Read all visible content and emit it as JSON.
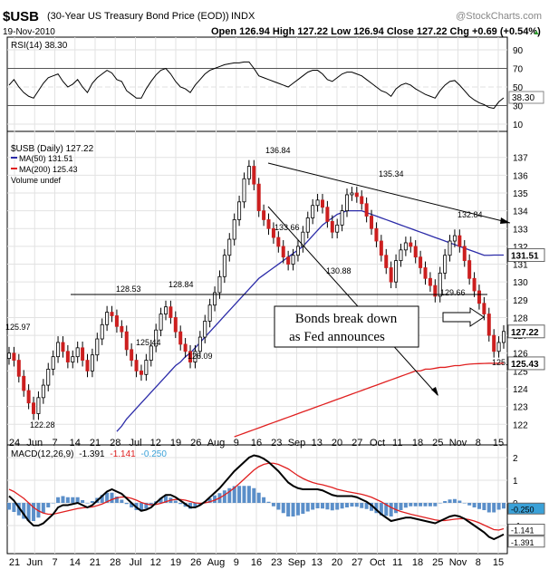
{
  "header": {
    "symbol": "$USB",
    "description": "(30-Year US Treasury Bond Price (EOD))",
    "exchange": "INDX",
    "watermark": "@StockCharts.com",
    "date": "19-Nov-2010",
    "ohlc_text": "Open 126.94  High 127.22  Low 126.94  Close 127.22  Chg +0.69 (+0.54%)",
    "chg_arrow": "▲"
  },
  "rsi": {
    "label": "RSI(14) 38.30",
    "value_badge": "38.30",
    "levels": [
      "90",
      "70",
      "50",
      "30",
      "10"
    ]
  },
  "price_legend": {
    "title": "$USB (Daily) 127.22",
    "ma50": "MA(50) 131.51",
    "ma200": "MA(200) 125.43",
    "volume": "Volume undef"
  },
  "macd": {
    "label_prefix": "MACD(12,26,9)",
    "v1": "-1.391",
    "v2": "-1.141",
    "v3": "-0.250",
    "axis": [
      "2",
      "1",
      "0",
      "-1"
    ],
    "badges": [
      "-0.250",
      "-1.141",
      "-1.391"
    ]
  },
  "annotation": {
    "line1": "Bonds break down",
    "line2": "as Fed announces"
  },
  "colors": {
    "ma50": "#2b2ba8",
    "ma200": "#e02020",
    "down_candle": "#cc1f1f",
    "up_candle": "#ffffff",
    "hist": "#5b8fc9",
    "badge_blue": "#3aa1d8"
  },
  "chart_data": {
    "type": "candlestick",
    "y_axis": [
      "122",
      "123",
      "124",
      "125",
      "126",
      "127",
      "128",
      "129",
      "130",
      "131",
      "132",
      "133",
      "134",
      "135",
      "136",
      "137"
    ],
    "ylim": [
      121.2,
      137.8
    ],
    "last_price_badge": "127.22",
    "ma50_badge": "131.51",
    "ma200_badge": "125.43",
    "x_labels": [
      "24",
      "Jun",
      "7",
      "14",
      "21",
      "28",
      "Jul",
      "12",
      "19",
      "26",
      "Aug",
      "9",
      "16",
      "23",
      "Sep",
      "13",
      "20",
      "27",
      "Oct",
      "11",
      "18",
      "25",
      "Nov",
      "8",
      "15"
    ],
    "x_labels_bottom": [
      "21",
      "Jun",
      "7",
      "14",
      "21",
      "28",
      "Jul",
      "12",
      "19",
      "26",
      "Aug",
      "9",
      "16",
      "23",
      "Sep",
      "13",
      "20",
      "27",
      "Oct",
      "11",
      "18",
      "25",
      "Nov",
      "8",
      "15"
    ],
    "price_labels": [
      "125.97",
      "122.28",
      "128.53",
      "125.44",
      "128.84",
      "126.09",
      "136.84",
      "133.66",
      "130.88",
      "135.34",
      "132.84",
      "129.66",
      "125.72"
    ],
    "closes": [
      126.0,
      125.6,
      124.7,
      123.9,
      123.2,
      122.6,
      123.5,
      124.2,
      125.1,
      125.8,
      126.6,
      126.1,
      125.5,
      125.8,
      126.3,
      125.6,
      125.0,
      125.9,
      126.8,
      127.6,
      128.3,
      128.1,
      127.5,
      127.2,
      126.2,
      125.6,
      125.0,
      124.8,
      125.6,
      126.4,
      127.3,
      128.2,
      128.6,
      128.0,
      127.2,
      126.5,
      126.1,
      125.5,
      126.1,
      126.9,
      127.8,
      128.7,
      129.4,
      130.3,
      131.5,
      132.4,
      133.5,
      134.5,
      135.8,
      136.5,
      135.5,
      134.0,
      133.5,
      133.0,
      132.5,
      132.0,
      131.4,
      131.0,
      131.5,
      132.0,
      132.8,
      133.6,
      134.3,
      134.6,
      134.2,
      133.4,
      132.8,
      133.2,
      134.0,
      134.9,
      135.0,
      134.8,
      134.4,
      133.7,
      133.0,
      132.3,
      131.5,
      130.8,
      130.0,
      131.2,
      131.8,
      132.2,
      132.0,
      131.4,
      130.8,
      130.2,
      129.8,
      129.2,
      130.5,
      131.5,
      132.3,
      132.6,
      132.0,
      131.2,
      130.2,
      129.5,
      128.8,
      128.2,
      127.0,
      126.1,
      126.6,
      127.22
    ],
    "ma50": [
      null,
      null,
      null,
      null,
      null,
      null,
      null,
      null,
      null,
      null,
      null,
      null,
      null,
      null,
      null,
      null,
      null,
      null,
      null,
      null,
      null,
      null,
      121.6,
      121.9,
      122.3,
      122.6,
      122.9,
      123.2,
      123.5,
      123.8,
      124.1,
      124.4,
      124.7,
      125.0,
      125.3,
      125.5,
      125.8,
      126.0,
      126.3,
      126.6,
      126.9,
      127.2,
      127.5,
      127.8,
      128.1,
      128.4,
      128.7,
      129.0,
      129.3,
      129.6,
      129.9,
      130.2,
      130.4,
      130.6,
      130.8,
      131.0,
      131.2,
      131.4,
      131.6,
      131.8,
      132.0,
      132.3,
      132.6,
      132.9,
      133.2,
      133.4,
      133.6,
      133.8,
      133.9,
      134.0,
      134.0,
      134.0,
      134.0,
      133.9,
      133.8,
      133.7,
      133.6,
      133.5,
      133.4,
      133.3,
      133.2,
      133.1,
      133.0,
      132.9,
      132.8,
      132.7,
      132.6,
      132.5,
      132.4,
      132.3,
      132.2,
      132.1,
      132.0,
      131.9,
      131.8,
      131.7,
      131.6,
      131.5,
      131.5,
      131.51,
      131.51,
      131.51
    ],
    "ma200": [
      null,
      null,
      null,
      null,
      null,
      null,
      null,
      null,
      null,
      null,
      null,
      null,
      null,
      null,
      null,
      null,
      null,
      null,
      null,
      null,
      null,
      null,
      null,
      null,
      null,
      null,
      null,
      null,
      null,
      null,
      null,
      null,
      null,
      null,
      null,
      null,
      null,
      null,
      null,
      null,
      null,
      null,
      null,
      null,
      null,
      null,
      121.3,
      121.4,
      121.5,
      121.6,
      121.7,
      121.8,
      121.9,
      122.0,
      122.1,
      122.2,
      122.3,
      122.4,
      122.5,
      122.6,
      122.7,
      122.8,
      122.9,
      123.0,
      123.1,
      123.2,
      123.3,
      123.4,
      123.5,
      123.6,
      123.7,
      123.8,
      123.9,
      124.0,
      124.1,
      124.2,
      124.3,
      124.4,
      124.5,
      124.6,
      124.7,
      124.8,
      124.9,
      125.0,
      125.0,
      125.1,
      125.1,
      125.15,
      125.2,
      125.2,
      125.25,
      125.3,
      125.3,
      125.35,
      125.38,
      125.4,
      125.41,
      125.42,
      125.43,
      125.43,
      125.43,
      125.43
    ],
    "rsi": [
      52,
      58,
      50,
      44,
      40,
      38,
      46,
      54,
      60,
      62,
      64,
      56,
      50,
      53,
      58,
      50,
      44,
      54,
      60,
      64,
      68,
      65,
      58,
      56,
      46,
      42,
      38,
      38,
      48,
      56,
      63,
      68,
      70,
      64,
      56,
      50,
      48,
      44,
      52,
      58,
      64,
      68,
      70,
      72,
      74,
      75,
      76,
      76,
      77,
      77,
      70,
      62,
      60,
      58,
      56,
      54,
      52,
      50,
      54,
      58,
      62,
      66,
      68,
      68,
      64,
      58,
      56,
      60,
      64,
      66,
      66,
      64,
      62,
      58,
      54,
      50,
      46,
      44,
      40,
      48,
      52,
      54,
      52,
      48,
      45,
      42,
      40,
      38,
      46,
      52,
      56,
      57,
      52,
      46,
      40,
      36,
      33,
      31,
      28,
      27,
      34,
      38.3
    ],
    "macd": [
      0.3,
      0.1,
      -0.2,
      -0.5,
      -0.8,
      -1.0,
      -1.0,
      -0.9,
      -0.7,
      -0.5,
      -0.2,
      -0.1,
      -0.1,
      -0.05,
      0.0,
      -0.1,
      -0.2,
      -0.1,
      0.1,
      0.3,
      0.5,
      0.6,
      0.5,
      0.4,
      0.2,
      0.0,
      -0.2,
      -0.35,
      -0.3,
      -0.2,
      0.0,
      0.2,
      0.35,
      0.35,
      0.25,
      0.1,
      -0.05,
      -0.2,
      -0.2,
      -0.1,
      0.05,
      0.25,
      0.45,
      0.65,
      0.9,
      1.15,
      1.4,
      1.6,
      1.8,
      2.0,
      2.1,
      2.05,
      1.95,
      1.8,
      1.6,
      1.4,
      1.15,
      0.9,
      0.75,
      0.65,
      0.6,
      0.6,
      0.6,
      0.6,
      0.55,
      0.45,
      0.35,
      0.3,
      0.3,
      0.3,
      0.3,
      0.25,
      0.15,
      0.05,
      -0.1,
      -0.3,
      -0.5,
      -0.65,
      -0.8,
      -0.75,
      -0.7,
      -0.65,
      -0.65,
      -0.7,
      -0.75,
      -0.8,
      -0.85,
      -0.9,
      -0.8,
      -0.7,
      -0.6,
      -0.55,
      -0.6,
      -0.7,
      -0.85,
      -1.0,
      -1.15,
      -1.3,
      -1.5,
      -1.6,
      -1.5,
      -1.391
    ],
    "signal": [
      0.6,
      0.5,
      0.35,
      0.2,
      0.0,
      -0.2,
      -0.35,
      -0.45,
      -0.5,
      -0.5,
      -0.45,
      -0.4,
      -0.35,
      -0.3,
      -0.25,
      -0.22,
      -0.2,
      -0.18,
      -0.12,
      -0.05,
      0.05,
      0.15,
      0.22,
      0.26,
      0.25,
      0.2,
      0.12,
      0.02,
      -0.05,
      -0.08,
      -0.07,
      -0.02,
      0.05,
      0.12,
      0.15,
      0.15,
      0.12,
      0.06,
      0.0,
      -0.02,
      0.0,
      0.05,
      0.12,
      0.22,
      0.35,
      0.5,
      0.66,
      0.85,
      1.05,
      1.25,
      1.45,
      1.6,
      1.7,
      1.75,
      1.75,
      1.7,
      1.6,
      1.5,
      1.35,
      1.2,
      1.08,
      0.98,
      0.9,
      0.84,
      0.8,
      0.74,
      0.68,
      0.6,
      0.55,
      0.5,
      0.46,
      0.42,
      0.38,
      0.32,
      0.25,
      0.15,
      0.05,
      -0.08,
      -0.2,
      -0.3,
      -0.38,
      -0.44,
      -0.5,
      -0.55,
      -0.6,
      -0.65,
      -0.7,
      -0.75,
      -0.78,
      -0.78,
      -0.75,
      -0.72,
      -0.7,
      -0.7,
      -0.74,
      -0.8,
      -0.88,
      -0.98,
      -1.08,
      -1.18,
      -1.2,
      -1.141
    ]
  }
}
